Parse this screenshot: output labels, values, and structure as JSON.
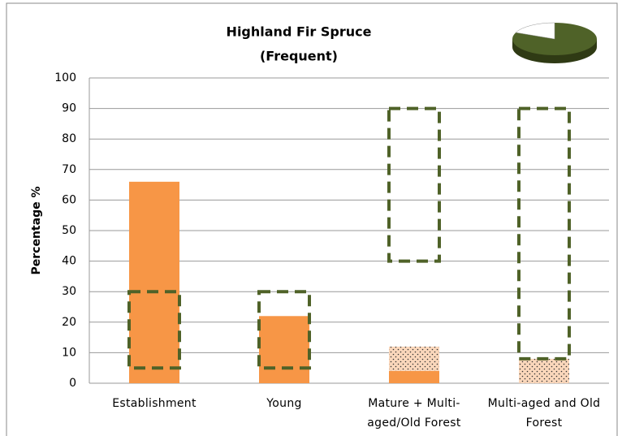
{
  "chart_data": {
    "type": "bar",
    "title": "Highland Fir Spruce",
    "subtitle": "(Frequent)",
    "y_label": "Percentage %",
    "categories": [
      "Establishment",
      "Young",
      "Mature + Multi-aged/Old Forest",
      "Multi-aged and Old Forest"
    ],
    "series": [
      {
        "color": "#f79646",
        "values": [
          66,
          22,
          4,
          0
        ]
      },
      {
        "color": "#fad7bb",
        "pattern": "dots",
        "values": [
          0,
          0,
          8,
          8
        ]
      }
    ],
    "ranges": {
      "color": "#4f6228",
      "low": [
        5,
        5,
        40,
        8
      ],
      "high": [
        30,
        30,
        90,
        90
      ]
    },
    "stacked": true,
    "ylim": [
      0,
      100
    ],
    "yticks": [
      0,
      10,
      20,
      30,
      40,
      50,
      60,
      70,
      80,
      90,
      100
    ],
    "grid": true
  }
}
